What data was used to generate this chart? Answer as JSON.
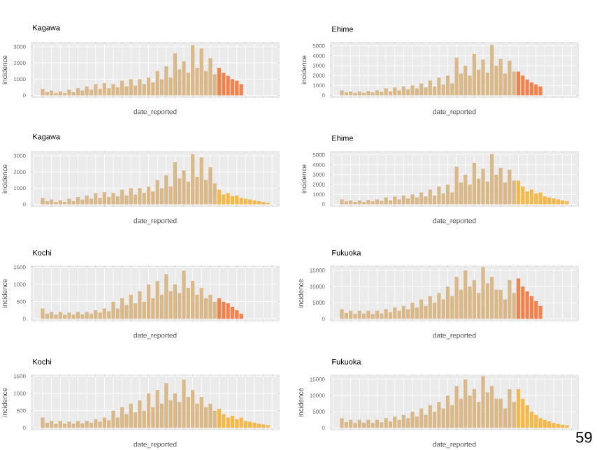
{
  "chart_data": [
    {
      "type": "bar",
      "title": "Kagawa",
      "xlabel": "date_reported",
      "ylabel": "incidence",
      "categories": [
        null,
        null,
        null,
        null,
        null,
        null,
        null,
        null,
        null,
        null,
        null,
        null,
        null,
        null,
        null,
        null,
        null,
        null,
        null,
        null,
        null,
        null,
        null,
        null,
        null,
        null,
        null,
        null,
        null,
        null,
        null,
        null,
        null,
        null,
        null,
        null,
        null,
        null,
        null,
        null,
        null,
        null,
        null,
        null,
        null,
        null,
        null,
        null,
        null,
        null,
        null,
        null,
        null,
        null,
        null,
        null
      ],
      "ylim": [
        -150,
        3300
      ],
      "yticks": [
        0,
        1000,
        2000,
        3000
      ],
      "grid": true,
      "tick_labels": "y",
      "series": [
        {
          "color": "#d9b98a",
          "values": [
            null,
            null,
            400,
            200,
            300,
            150,
            250,
            150,
            350,
            200,
            450,
            300,
            550,
            350,
            700,
            400,
            750,
            450,
            700,
            500,
            900,
            550,
            1000,
            600,
            1000,
            700,
            1100,
            800,
            1500,
            1000,
            1800,
            1100,
            2600,
            1600,
            2100,
            1400,
            3100,
            1700,
            2900,
            1500,
            2300,
            1300,
            null,
            null,
            null,
            null,
            null,
            null,
            null,
            null,
            null,
            null,
            null,
            null,
            null,
            null
          ]
        },
        {
          "color": "#f4814a",
          "values": [
            null,
            null,
            null,
            null,
            null,
            null,
            null,
            null,
            null,
            null,
            null,
            null,
            null,
            null,
            null,
            null,
            null,
            null,
            null,
            null,
            null,
            null,
            null,
            null,
            null,
            null,
            null,
            null,
            null,
            null,
            null,
            null,
            null,
            null,
            null,
            null,
            null,
            null,
            null,
            null,
            null,
            null,
            1700,
            1400,
            1200,
            1000,
            900,
            700,
            null,
            null,
            null,
            null,
            null,
            null,
            null,
            null
          ]
        }
      ]
    },
    {
      "type": "bar",
      "title": "Ehime",
      "xlabel": "date_reported",
      "ylabel": "incidence",
      "categories": [
        null,
        null,
        null,
        null,
        null,
        null,
        null,
        null,
        null,
        null,
        null,
        null,
        null,
        null,
        null,
        null,
        null,
        null,
        null,
        null,
        null,
        null,
        null,
        null,
        null,
        null,
        null,
        null,
        null,
        null,
        null,
        null,
        null,
        null,
        null,
        null,
        null,
        null,
        null,
        null,
        null,
        null,
        null,
        null,
        null,
        null,
        null,
        null,
        null,
        null,
        null,
        null,
        null,
        null,
        null,
        null
      ],
      "ylim": [
        -250,
        5400
      ],
      "yticks": [
        0,
        1000,
        2000,
        3000,
        4000,
        5000
      ],
      "grid": true,
      "tick_labels": "y",
      "series": [
        {
          "color": "#d9b98a",
          "values": [
            null,
            null,
            500,
            300,
            400,
            250,
            400,
            250,
            450,
            300,
            500,
            350,
            700,
            400,
            800,
            500,
            900,
            600,
            1000,
            700,
            1200,
            800,
            1500,
            900,
            1800,
            1100,
            2000,
            1200,
            3800,
            2200,
            3000,
            2000,
            4200,
            2600,
            3600,
            2300,
            5100,
            3000,
            3700,
            2200,
            3500,
            2400,
            null,
            null,
            null,
            null,
            null,
            null,
            null,
            null,
            null,
            null,
            null,
            null,
            null,
            null
          ]
        },
        {
          "color": "#f4814a",
          "values": [
            null,
            null,
            null,
            null,
            null,
            null,
            null,
            null,
            null,
            null,
            null,
            null,
            null,
            null,
            null,
            null,
            null,
            null,
            null,
            null,
            null,
            null,
            null,
            null,
            null,
            null,
            null,
            null,
            null,
            null,
            null,
            null,
            null,
            null,
            null,
            null,
            null,
            null,
            null,
            null,
            null,
            null,
            2400,
            2000,
            1600,
            1300,
            1100,
            900,
            null,
            null,
            null,
            null,
            null,
            null,
            null,
            null
          ]
        }
      ]
    },
    {
      "type": "bar",
      "title": "Kagawa",
      "xlabel": "date_reported",
      "ylabel": "incidence",
      "categories": [
        null,
        null,
        null,
        null,
        null,
        null,
        null,
        null,
        null,
        null,
        null,
        null,
        null,
        null,
        null,
        null,
        null,
        null,
        null,
        null,
        null,
        null,
        null,
        null,
        null,
        null,
        null,
        null,
        null,
        null,
        null,
        null,
        null,
        null,
        null,
        null,
        null,
        null,
        null,
        null,
        null,
        null,
        null,
        null,
        null,
        null,
        null,
        null,
        null,
        null,
        null,
        null,
        null,
        null,
        null,
        null
      ],
      "ylim": [
        -150,
        3300
      ],
      "yticks": [
        0,
        1000,
        2000,
        3000
      ],
      "grid": true,
      "tick_labels": "y",
      "series": [
        {
          "color": "#d9b98a",
          "values": [
            null,
            null,
            400,
            200,
            300,
            150,
            250,
            150,
            350,
            200,
            450,
            300,
            550,
            350,
            700,
            400,
            750,
            450,
            700,
            500,
            900,
            550,
            1000,
            600,
            1000,
            700,
            1100,
            800,
            1500,
            1000,
            1800,
            1100,
            2600,
            1600,
            2100,
            1400,
            3100,
            1700,
            2900,
            1500,
            2300,
            1300,
            null,
            null,
            null,
            null,
            null,
            null,
            null,
            null,
            null,
            null,
            null,
            null,
            null,
            null
          ]
        },
        {
          "color": "#f5b94a",
          "values": [
            null,
            null,
            null,
            null,
            null,
            null,
            null,
            null,
            null,
            null,
            null,
            null,
            null,
            null,
            null,
            null,
            null,
            null,
            null,
            null,
            null,
            null,
            null,
            null,
            null,
            null,
            null,
            null,
            null,
            null,
            null,
            null,
            null,
            null,
            null,
            null,
            null,
            null,
            null,
            null,
            null,
            null,
            900,
            600,
            700,
            500,
            550,
            400,
            350,
            300,
            250,
            200,
            150,
            100,
            null,
            null
          ]
        }
      ]
    },
    {
      "type": "bar",
      "title": "Ehime",
      "xlabel": "date_reported",
      "ylabel": "incidence",
      "categories": [
        null,
        null,
        null,
        null,
        null,
        null,
        null,
        null,
        null,
        null,
        null,
        null,
        null,
        null,
        null,
        null,
        null,
        null,
        null,
        null,
        null,
        null,
        null,
        null,
        null,
        null,
        null,
        null,
        null,
        null,
        null,
        null,
        null,
        null,
        null,
        null,
        null,
        null,
        null,
        null,
        null,
        null,
        null,
        null,
        null,
        null,
        null,
        null,
        null,
        null,
        null,
        null,
        null,
        null,
        null,
        null
      ],
      "ylim": [
        -250,
        5400
      ],
      "yticks": [
        0,
        1000,
        2000,
        3000,
        4000,
        5000
      ],
      "grid": true,
      "tick_labels": "y",
      "series": [
        {
          "color": "#d9b98a",
          "values": [
            null,
            null,
            500,
            300,
            400,
            250,
            400,
            250,
            450,
            300,
            500,
            350,
            700,
            400,
            800,
            500,
            900,
            600,
            1000,
            700,
            1200,
            800,
            1500,
            900,
            1800,
            1100,
            2000,
            1200,
            3800,
            2200,
            3000,
            2000,
            4200,
            2600,
            3600,
            2300,
            5100,
            3000,
            3700,
            2200,
            3500,
            2400,
            null,
            null,
            null,
            null,
            null,
            null,
            null,
            null,
            null,
            null,
            null,
            null,
            null,
            null
          ]
        },
        {
          "color": "#f5b94a",
          "values": [
            null,
            null,
            null,
            null,
            null,
            null,
            null,
            null,
            null,
            null,
            null,
            null,
            null,
            null,
            null,
            null,
            null,
            null,
            null,
            null,
            null,
            null,
            null,
            null,
            null,
            null,
            null,
            null,
            null,
            null,
            null,
            null,
            null,
            null,
            null,
            null,
            null,
            null,
            null,
            null,
            null,
            null,
            2400,
            1800,
            1300,
            1500,
            1100,
            1200,
            800,
            700,
            600,
            500,
            400,
            300,
            null,
            null
          ]
        }
      ]
    },
    {
      "type": "bar",
      "title": "Kochi",
      "xlabel": "date_reported",
      "ylabel": "incidence",
      "categories": [
        null,
        null,
        null,
        null,
        null,
        null,
        null,
        null,
        null,
        null,
        null,
        null,
        null,
        null,
        null,
        null,
        null,
        null,
        null,
        null,
        null,
        null,
        null,
        null,
        null,
        null,
        null,
        null,
        null,
        null,
        null,
        null,
        null,
        null,
        null,
        null,
        null,
        null,
        null,
        null,
        null,
        null,
        null,
        null,
        null,
        null,
        null,
        null,
        null,
        null,
        null,
        null,
        null,
        null,
        null,
        null
      ],
      "ylim": [
        -75,
        1550
      ],
      "yticks": [
        0,
        500,
        1000,
        1500
      ],
      "grid": true,
      "tick_labels": "y",
      "series": [
        {
          "color": "#d9b98a",
          "values": [
            null,
            null,
            300,
            150,
            200,
            120,
            200,
            120,
            180,
            120,
            200,
            130,
            200,
            150,
            250,
            180,
            300,
            220,
            500,
            300,
            600,
            400,
            700,
            450,
            800,
            500,
            1000,
            600,
            1100,
            700,
            1300,
            800,
            1000,
            750,
            1400,
            900,
            1100,
            700,
            900,
            600,
            700,
            500,
            null,
            null,
            null,
            null,
            null,
            null,
            null,
            null,
            null,
            null,
            null,
            null,
            null,
            null
          ]
        },
        {
          "color": "#f4814a",
          "values": [
            null,
            null,
            null,
            null,
            null,
            null,
            null,
            null,
            null,
            null,
            null,
            null,
            null,
            null,
            null,
            null,
            null,
            null,
            null,
            null,
            null,
            null,
            null,
            null,
            null,
            null,
            null,
            null,
            null,
            null,
            null,
            null,
            null,
            null,
            null,
            null,
            null,
            null,
            null,
            null,
            null,
            null,
            600,
            500,
            450,
            350,
            250,
            150,
            null,
            null,
            null,
            null,
            null,
            null,
            null,
            null
          ]
        }
      ]
    },
    {
      "type": "bar",
      "title": "Fukuoka",
      "xlabel": "date_reported",
      "ylabel": "incidence",
      "categories": [
        null,
        null,
        null,
        null,
        null,
        null,
        null,
        null,
        null,
        null,
        null,
        null,
        null,
        null,
        null,
        null,
        null,
        null,
        null,
        null,
        null,
        null,
        null,
        null,
        null,
        null,
        null,
        null,
        null,
        null,
        null,
        null,
        null,
        null,
        null,
        null,
        null,
        null,
        null,
        null,
        null,
        null,
        null,
        null,
        null,
        null,
        null,
        null,
        null,
        null,
        null,
        null,
        null,
        null,
        null,
        null
      ],
      "ylim": [
        -800,
        16500
      ],
      "yticks": [
        0,
        5000,
        10000,
        15000
      ],
      "grid": true,
      "tick_labels": "y",
      "series": [
        {
          "color": "#d9b98a",
          "values": [
            null,
            null,
            3000,
            1800,
            2500,
            1500,
            2500,
            1600,
            2500,
            1500,
            2500,
            1700,
            3000,
            2000,
            3500,
            2500,
            4000,
            3000,
            5000,
            3500,
            6000,
            4000,
            7000,
            5000,
            8000,
            6000,
            10000,
            7000,
            13000,
            9000,
            15000,
            10000,
            12000,
            8000,
            16000,
            11000,
            13000,
            9000,
            9000,
            6000,
            12000,
            8000,
            null,
            null,
            null,
            null,
            null,
            null,
            null,
            null,
            null,
            null,
            null,
            null,
            null,
            null
          ]
        },
        {
          "color": "#f4814a",
          "values": [
            null,
            null,
            null,
            null,
            null,
            null,
            null,
            null,
            null,
            null,
            null,
            null,
            null,
            null,
            null,
            null,
            null,
            null,
            null,
            null,
            null,
            null,
            null,
            null,
            null,
            null,
            null,
            null,
            null,
            null,
            null,
            null,
            null,
            null,
            null,
            null,
            null,
            null,
            null,
            null,
            null,
            null,
            12500,
            10000,
            8500,
            7000,
            5500,
            4000,
            null,
            null,
            null,
            null,
            null,
            null,
            null,
            null
          ]
        }
      ]
    },
    {
      "type": "bar",
      "title": "Kochi",
      "xlabel": "date_reported",
      "ylabel": "incidence",
      "categories": [
        null,
        null,
        null,
        null,
        null,
        null,
        null,
        null,
        null,
        null,
        null,
        null,
        null,
        null,
        null,
        null,
        null,
        null,
        null,
        null,
        null,
        null,
        null,
        null,
        null,
        null,
        null,
        null,
        null,
        null,
        null,
        null,
        null,
        null,
        null,
        null,
        null,
        null,
        null,
        null,
        null,
        null,
        null,
        null,
        null,
        null,
        null,
        null,
        null,
        null,
        null,
        null,
        null,
        null,
        null,
        null
      ],
      "ylim": [
        -75,
        1550
      ],
      "yticks": [
        0,
        500,
        1000,
        1500
      ],
      "grid": true,
      "tick_labels": "y",
      "series": [
        {
          "color": "#d9b98a",
          "values": [
            null,
            null,
            300,
            150,
            200,
            120,
            200,
            120,
            180,
            120,
            200,
            130,
            200,
            150,
            250,
            180,
            300,
            220,
            500,
            300,
            600,
            400,
            700,
            450,
            800,
            500,
            1000,
            600,
            1100,
            700,
            1300,
            800,
            1000,
            750,
            1400,
            900,
            1100,
            700,
            900,
            600,
            700,
            500,
            null,
            null,
            null,
            null,
            null,
            null,
            null,
            null,
            null,
            null,
            null,
            null,
            null,
            null
          ]
        },
        {
          "color": "#f5b94a",
          "values": [
            null,
            null,
            null,
            null,
            null,
            null,
            null,
            null,
            null,
            null,
            null,
            null,
            null,
            null,
            null,
            null,
            null,
            null,
            null,
            null,
            null,
            null,
            null,
            null,
            null,
            null,
            null,
            null,
            null,
            null,
            null,
            null,
            null,
            null,
            null,
            null,
            null,
            null,
            null,
            null,
            null,
            null,
            550,
            400,
            300,
            350,
            250,
            300,
            200,
            180,
            150,
            120,
            100,
            80,
            null,
            null
          ]
        }
      ]
    },
    {
      "type": "bar",
      "title": "Fukuoka",
      "xlabel": "date_reported",
      "ylabel": "incidence",
      "categories": [
        null,
        null,
        null,
        null,
        null,
        null,
        null,
        null,
        null,
        null,
        null,
        null,
        null,
        null,
        null,
        null,
        null,
        null,
        null,
        null,
        null,
        null,
        null,
        null,
        null,
        null,
        null,
        null,
        null,
        null,
        null,
        null,
        null,
        null,
        null,
        null,
        null,
        null,
        null,
        null,
        null,
        null,
        null,
        null,
        null,
        null,
        null,
        null,
        null,
        null,
        null,
        null,
        null,
        null,
        null,
        null
      ],
      "ylim": [
        -800,
        16500
      ],
      "yticks": [
        0,
        5000,
        10000,
        15000
      ],
      "grid": true,
      "tick_labels": "y",
      "annotations": [
        "59"
      ],
      "series": [
        {
          "color": "#d9b98a",
          "values": [
            null,
            null,
            3000,
            1800,
            2500,
            1500,
            2500,
            1600,
            2500,
            1500,
            2500,
            1700,
            3000,
            2000,
            3500,
            2500,
            4000,
            3000,
            5000,
            3500,
            6000,
            4000,
            7000,
            5000,
            8000,
            6000,
            10000,
            7000,
            13000,
            9000,
            15000,
            10000,
            12000,
            8000,
            16000,
            11000,
            13000,
            9000,
            9000,
            6000,
            12000,
            8000,
            null,
            null,
            null,
            null,
            null,
            null,
            null,
            null,
            null,
            null,
            null,
            null,
            null,
            null
          ]
        },
        {
          "color": "#f5b94a",
          "values": [
            null,
            null,
            null,
            null,
            null,
            null,
            null,
            null,
            null,
            null,
            null,
            null,
            null,
            null,
            null,
            null,
            null,
            null,
            null,
            null,
            null,
            null,
            null,
            null,
            null,
            null,
            null,
            null,
            null,
            null,
            null,
            null,
            null,
            null,
            null,
            null,
            null,
            null,
            null,
            null,
            null,
            null,
            12000,
            9000,
            7000,
            5000,
            4000,
            3000,
            2500,
            2000,
            1500,
            1200,
            1000,
            800,
            null,
            null
          ]
        }
      ]
    }
  ]
}
